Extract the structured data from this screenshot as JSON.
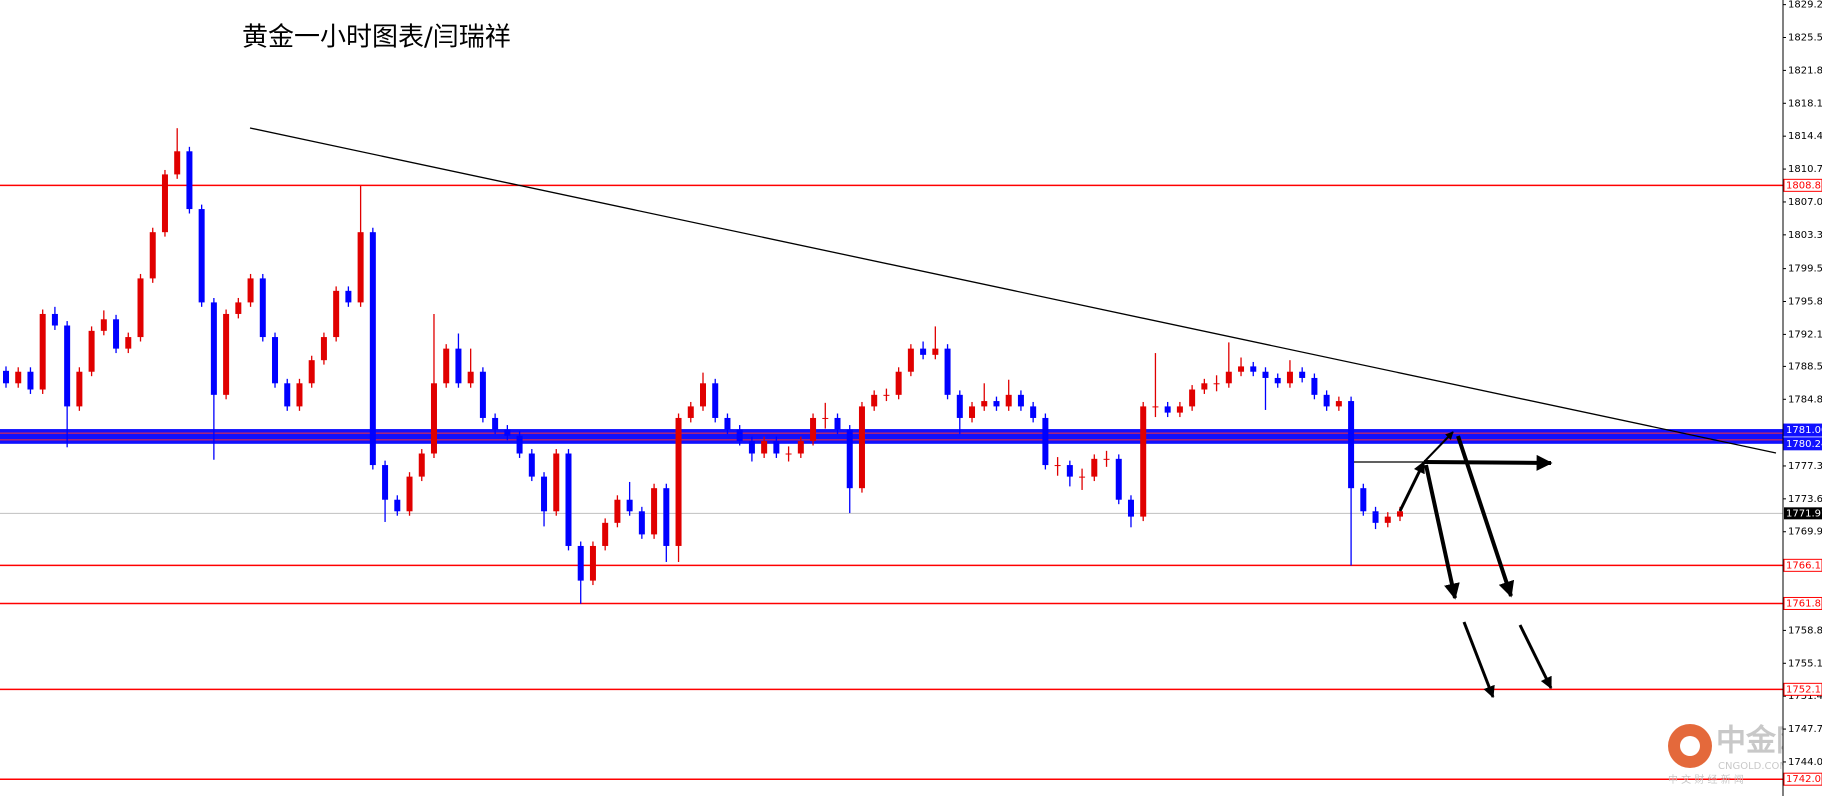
{
  "chart_data": {
    "type": "candlestick",
    "title": "黄金一小时图表/闫瑞祥",
    "watermark": {
      "name": "中金网",
      "site": "CNGOLD.COM",
      "tagline": "中 文 财 经 新 闻"
    },
    "up_color": "#e00000",
    "down_color": "#0000ff",
    "ylim": [
      1740.17,
      1829.72
    ],
    "yticks": [
      {
        "value": 1829.2,
        "label": "1829.20"
      },
      {
        "value": 1825.5,
        "label": "1825.50"
      },
      {
        "value": 1821.8,
        "label": "1821.80"
      },
      {
        "value": 1818.1,
        "label": "1818.10"
      },
      {
        "value": 1814.4,
        "label": "1814.40"
      },
      {
        "value": 1810.7,
        "label": "1810.70"
      },
      {
        "value": 1807.0,
        "label": "1807.00"
      },
      {
        "value": 1803.3,
        "label": "1803.30"
      },
      {
        "value": 1799.5,
        "label": "1799.50"
      },
      {
        "value": 1795.8,
        "label": "1795.80"
      },
      {
        "value": 1792.1,
        "label": "1792.10"
      },
      {
        "value": 1788.5,
        "label": "1788.50"
      },
      {
        "value": 1784.8,
        "label": "1784.80"
      },
      {
        "value": 1777.3,
        "label": "1777.30"
      },
      {
        "value": 1773.6,
        "label": "1773.60"
      },
      {
        "value": 1769.9,
        "label": "1769.90"
      },
      {
        "value": 1758.8,
        "label": "1758.80"
      },
      {
        "value": 1755.1,
        "label": "1755.10"
      },
      {
        "value": 1751.4,
        "label": "1751.40"
      },
      {
        "value": 1747.7,
        "label": "1747.70"
      },
      {
        "value": 1744.0,
        "label": "1744.00"
      }
    ],
    "levels": [
      {
        "value": 1808.87,
        "color": "#ff0000"
      },
      {
        "value": 1781.0,
        "label": "1781.00",
        "color": "#1010ff",
        "style": "band"
      },
      {
        "value": 1780.24,
        "color": "#1010ff",
        "style": "band"
      },
      {
        "value": 1766.12,
        "color": "#ff0000"
      },
      {
        "value": 1761.83,
        "color": "#ff0000"
      },
      {
        "value": 1752.17,
        "color": "#ff0000"
      },
      {
        "value": 1742.06,
        "color": "#ff0000"
      }
    ],
    "current_price": {
      "value": 1771.97,
      "color": "#c0c0c0"
    },
    "candles": [
      [
        1788.0,
        1788.5,
        1786.1,
        1786.6
      ],
      [
        1786.6,
        1788.4,
        1786.1,
        1787.9
      ],
      [
        1787.9,
        1788.4,
        1785.4,
        1785.9
      ],
      [
        1785.9,
        1794.9,
        1785.4,
        1794.4
      ],
      [
        1794.4,
        1795.2,
        1792.6,
        1793.1
      ],
      [
        1793.1,
        1793.6,
        1779.4,
        1784.0
      ],
      [
        1784.0,
        1788.4,
        1783.5,
        1787.9
      ],
      [
        1787.9,
        1793.0,
        1787.4,
        1792.5
      ],
      [
        1792.5,
        1794.8,
        1792.0,
        1793.8
      ],
      [
        1793.8,
        1794.3,
        1790.0,
        1790.5
      ],
      [
        1790.5,
        1792.3,
        1790.0,
        1791.8
      ],
      [
        1791.8,
        1798.9,
        1791.3,
        1798.4
      ],
      [
        1798.4,
        1804.1,
        1797.9,
        1803.6
      ],
      [
        1803.6,
        1810.6,
        1803.1,
        1810.1
      ],
      [
        1810.1,
        1815.3,
        1809.6,
        1812.7
      ],
      [
        1812.7,
        1813.2,
        1805.7,
        1806.2
      ],
      [
        1806.2,
        1806.7,
        1795.2,
        1795.7
      ],
      [
        1795.7,
        1796.2,
        1778.0,
        1785.3
      ],
      [
        1785.3,
        1794.9,
        1784.8,
        1794.4
      ],
      [
        1794.4,
        1796.2,
        1793.9,
        1795.7
      ],
      [
        1795.7,
        1798.9,
        1795.2,
        1798.4
      ],
      [
        1798.4,
        1798.9,
        1791.3,
        1791.8
      ],
      [
        1791.8,
        1792.3,
        1786.1,
        1786.6
      ],
      [
        1786.6,
        1787.1,
        1783.5,
        1784.0
      ],
      [
        1784.0,
        1787.1,
        1783.5,
        1786.6
      ],
      [
        1786.6,
        1789.7,
        1786.1,
        1789.2
      ],
      [
        1789.2,
        1792.3,
        1788.7,
        1791.8
      ],
      [
        1791.8,
        1797.5,
        1791.3,
        1797.0
      ],
      [
        1797.0,
        1797.5,
        1795.2,
        1795.7
      ],
      [
        1795.7,
        1808.8,
        1795.2,
        1803.6
      ],
      [
        1803.6,
        1804.1,
        1776.9,
        1777.4
      ],
      [
        1777.4,
        1777.9,
        1771.0,
        1773.5
      ],
      [
        1773.5,
        1774.0,
        1771.7,
        1772.2
      ],
      [
        1772.2,
        1776.6,
        1771.7,
        1776.1
      ],
      [
        1776.1,
        1779.2,
        1775.6,
        1778.7
      ],
      [
        1778.7,
        1794.4,
        1778.2,
        1786.6
      ],
      [
        1786.6,
        1791.0,
        1786.1,
        1790.5
      ],
      [
        1790.5,
        1792.2,
        1786.1,
        1786.6
      ],
      [
        1786.6,
        1790.5,
        1786.1,
        1787.9
      ],
      [
        1787.9,
        1788.4,
        1782.2,
        1782.7
      ],
      [
        1782.7,
        1783.2,
        1780.9,
        1781.4
      ],
      [
        1781.4,
        1781.9,
        1780.2,
        1780.7
      ],
      [
        1780.7,
        1781.2,
        1778.2,
        1778.7
      ],
      [
        1778.7,
        1779.2,
        1775.6,
        1776.1
      ],
      [
        1776.1,
        1776.6,
        1770.5,
        1772.2
      ],
      [
        1772.2,
        1779.2,
        1771.7,
        1778.7
      ],
      [
        1778.7,
        1779.2,
        1767.8,
        1768.3
      ],
      [
        1768.3,
        1768.8,
        1761.8,
        1764.4
      ],
      [
        1764.4,
        1768.8,
        1763.9,
        1768.3
      ],
      [
        1768.3,
        1771.4,
        1767.8,
        1770.9
      ],
      [
        1770.9,
        1774.0,
        1770.4,
        1773.5
      ],
      [
        1773.5,
        1775.5,
        1771.7,
        1772.2
      ],
      [
        1772.2,
        1772.7,
        1769.1,
        1769.6
      ],
      [
        1769.6,
        1775.3,
        1769.1,
        1774.8
      ],
      [
        1774.8,
        1775.3,
        1766.5,
        1768.3
      ],
      [
        1768.3,
        1783.2,
        1766.5,
        1782.7
      ],
      [
        1782.7,
        1784.5,
        1782.2,
        1784.0
      ],
      [
        1784.0,
        1787.8,
        1783.5,
        1786.6
      ],
      [
        1786.6,
        1787.1,
        1782.2,
        1782.7
      ],
      [
        1782.7,
        1783.2,
        1780.9,
        1781.4
      ],
      [
        1781.4,
        1781.9,
        1779.6,
        1780.1
      ],
      [
        1780.1,
        1780.6,
        1777.8,
        1778.7
      ],
      [
        1778.7,
        1780.6,
        1778.2,
        1780.1
      ],
      [
        1780.1,
        1780.6,
        1778.2,
        1778.7
      ],
      [
        1778.7,
        1779.5,
        1777.8,
        1778.7
      ],
      [
        1778.7,
        1780.6,
        1778.2,
        1780.1
      ],
      [
        1780.1,
        1783.2,
        1779.6,
        1782.7
      ],
      [
        1782.7,
        1784.4,
        1781.5,
        1782.7
      ],
      [
        1782.7,
        1783.2,
        1780.9,
        1781.4
      ],
      [
        1781.4,
        1781.9,
        1772.0,
        1774.8
      ],
      [
        1774.8,
        1784.5,
        1774.3,
        1784.0
      ],
      [
        1784.0,
        1785.8,
        1783.5,
        1785.3
      ],
      [
        1785.3,
        1786.0,
        1784.6,
        1785.3
      ],
      [
        1785.3,
        1788.4,
        1784.8,
        1787.9
      ],
      [
        1787.9,
        1791.0,
        1787.4,
        1790.5
      ],
      [
        1790.5,
        1791.3,
        1789.3,
        1789.8
      ],
      [
        1789.8,
        1793.0,
        1789.3,
        1790.5
      ],
      [
        1790.5,
        1791.0,
        1784.8,
        1785.3
      ],
      [
        1785.3,
        1785.8,
        1780.9,
        1782.7
      ],
      [
        1782.7,
        1784.5,
        1782.2,
        1784.0
      ],
      [
        1784.0,
        1786.6,
        1783.5,
        1784.6
      ],
      [
        1784.6,
        1785.1,
        1783.5,
        1784.0
      ],
      [
        1784.0,
        1787.0,
        1783.5,
        1785.3
      ],
      [
        1785.3,
        1785.8,
        1783.5,
        1784.0
      ],
      [
        1784.0,
        1784.5,
        1782.2,
        1782.7
      ],
      [
        1782.7,
        1783.2,
        1776.9,
        1777.4
      ],
      [
        1777.4,
        1778.3,
        1776.2,
        1777.4
      ],
      [
        1777.4,
        1777.9,
        1775.0,
        1776.1
      ],
      [
        1776.1,
        1777.0,
        1774.6,
        1776.1
      ],
      [
        1776.1,
        1778.6,
        1775.6,
        1778.1
      ],
      [
        1778.1,
        1779.0,
        1777.2,
        1778.1
      ],
      [
        1778.1,
        1778.6,
        1773.0,
        1773.5
      ],
      [
        1773.5,
        1774.0,
        1770.4,
        1771.6
      ],
      [
        1771.6,
        1784.5,
        1771.1,
        1784.0
      ],
      [
        1784.0,
        1790.0,
        1782.8,
        1784.0
      ],
      [
        1784.0,
        1784.5,
        1782.8,
        1783.3
      ],
      [
        1783.3,
        1784.5,
        1782.8,
        1784.0
      ],
      [
        1784.0,
        1786.4,
        1783.5,
        1785.9
      ],
      [
        1785.9,
        1787.1,
        1785.4,
        1786.6
      ],
      [
        1786.6,
        1787.5,
        1785.7,
        1786.6
      ],
      [
        1786.6,
        1791.2,
        1786.1,
        1787.9
      ],
      [
        1787.9,
        1789.5,
        1787.4,
        1788.5
      ],
      [
        1788.5,
        1789.0,
        1787.4,
        1787.9
      ],
      [
        1787.9,
        1788.4,
        1783.6,
        1787.2
      ],
      [
        1787.2,
        1787.7,
        1786.1,
        1786.6
      ],
      [
        1786.6,
        1789.2,
        1786.1,
        1787.9
      ],
      [
        1787.9,
        1788.4,
        1786.7,
        1787.2
      ],
      [
        1787.2,
        1787.7,
        1784.8,
        1785.3
      ],
      [
        1785.3,
        1785.8,
        1783.5,
        1784.0
      ],
      [
        1784.0,
        1785.1,
        1783.5,
        1784.6
      ],
      [
        1784.6,
        1785.1,
        1766.1,
        1774.8
      ],
      [
        1774.8,
        1775.3,
        1771.7,
        1772.2
      ],
      [
        1772.2,
        1772.7,
        1770.2,
        1770.9
      ],
      [
        1770.9,
        1772.1,
        1770.4,
        1771.6
      ],
      [
        1771.6,
        1772.7,
        1771.1,
        1772.2
      ]
    ]
  }
}
